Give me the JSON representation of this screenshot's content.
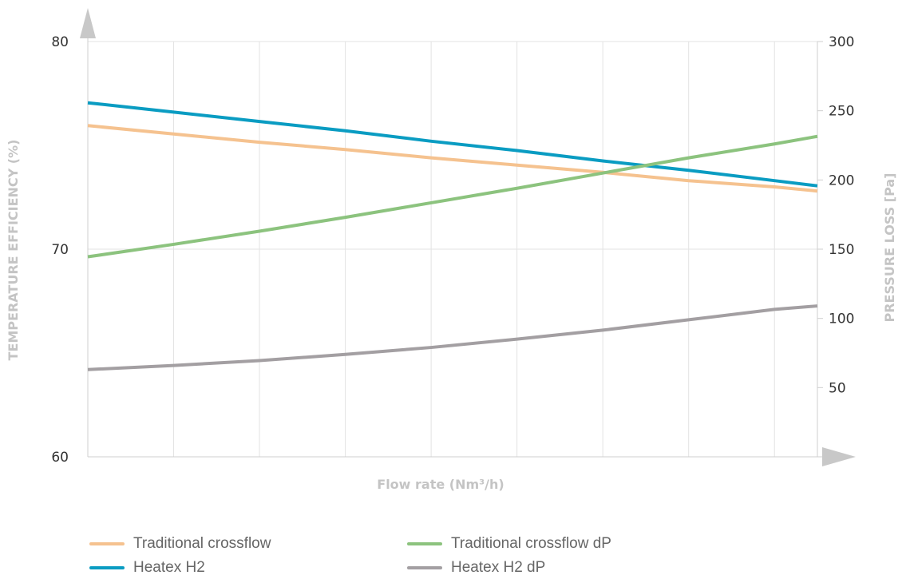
{
  "chart_data": {
    "type": "line",
    "title": "",
    "xlabel": "Flow rate (Nm³/h)",
    "ylabel_left": "TEMPERATURE EFFICIENCY (%)",
    "ylabel_right": "PRESSURE LOSS [Pa]",
    "x": [
      0,
      1,
      2,
      3,
      4,
      5,
      6,
      7,
      8,
      8.5
    ],
    "xlim": [
      0,
      8.5
    ],
    "y_left_lim": [
      60,
      80
    ],
    "y_left_ticks": [
      60,
      70,
      80
    ],
    "y_right_lim": [
      0,
      300
    ],
    "y_right_ticks": [
      50,
      100,
      150,
      200,
      250,
      300
    ],
    "grid": "vertical",
    "legend_position": "bottom",
    "series": [
      {
        "name": "Traditional crossflow",
        "axis": "left",
        "color": "#f5c28f",
        "values": [
          75.95,
          75.55,
          75.15,
          74.8,
          74.4,
          74.05,
          73.7,
          73.3,
          73.0,
          72.8
        ]
      },
      {
        "name": "Heatex H2",
        "axis": "left",
        "color": "#0a9cc2",
        "values": [
          77.05,
          76.6,
          76.15,
          75.7,
          75.2,
          74.75,
          74.25,
          73.8,
          73.3,
          73.05
        ]
      },
      {
        "name": "Traditional crossflow dP",
        "axis": "right",
        "color": "#8cc37e",
        "values": [
          144.5,
          153.5,
          163,
          173,
          183.5,
          194,
          205,
          216,
          226,
          231.5
        ]
      },
      {
        "name": "Heatex H2 dP",
        "axis": "right",
        "color": "#a39fa2",
        "values": [
          63,
          66,
          69.5,
          74,
          79,
          85,
          91.5,
          99,
          106.5,
          109
        ]
      }
    ]
  }
}
